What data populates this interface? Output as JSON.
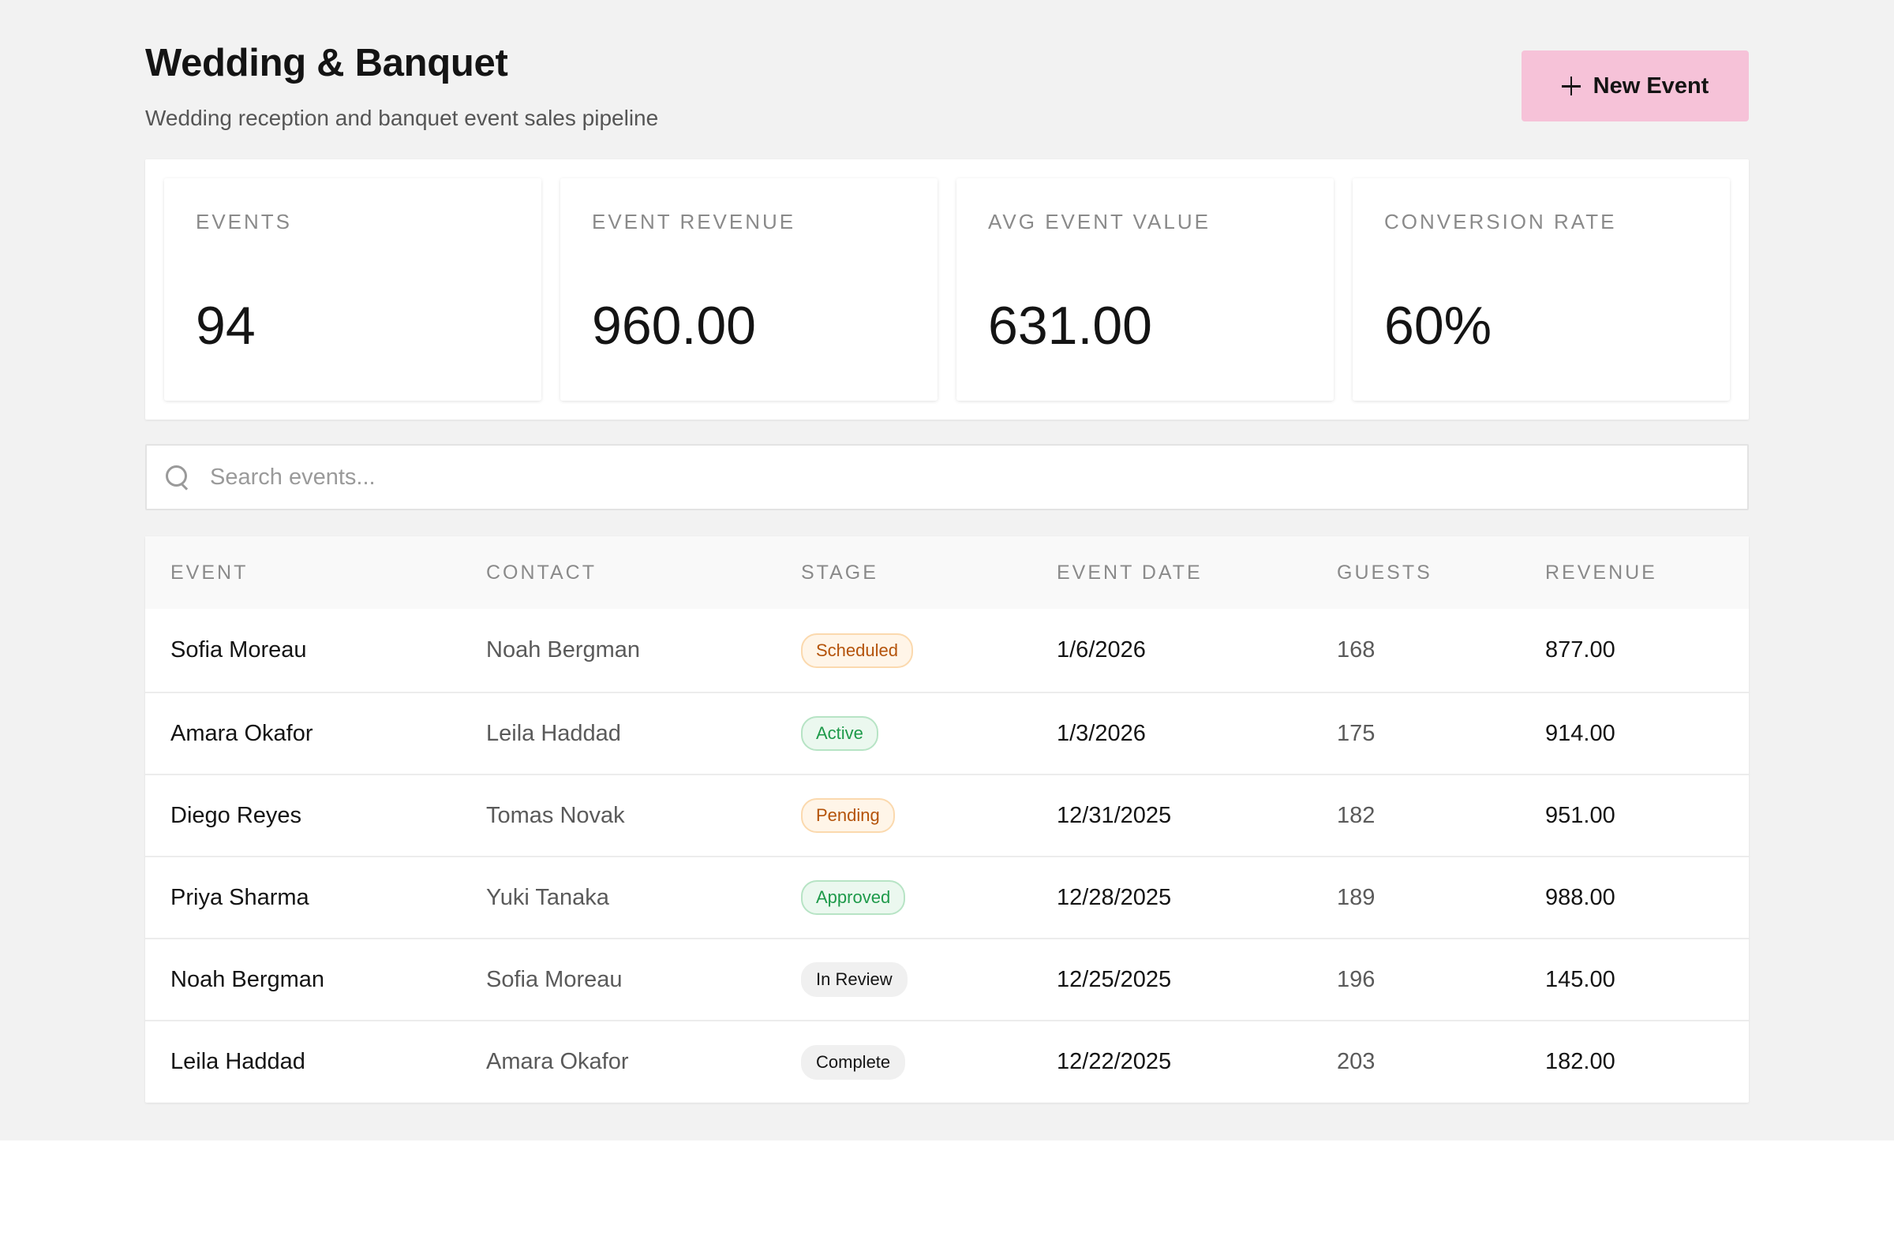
{
  "header": {
    "title": "Wedding & Banquet",
    "subtitle": "Wedding reception and banquet event sales pipeline",
    "new_event_label": "New Event"
  },
  "stats": [
    {
      "label": "EVENTS",
      "value": "94"
    },
    {
      "label": "EVENT REVENUE",
      "value": "960.00"
    },
    {
      "label": "AVG EVENT VALUE",
      "value": "631.00"
    },
    {
      "label": "CONVERSION RATE",
      "value": "60%"
    }
  ],
  "search": {
    "placeholder": "Search events..."
  },
  "table": {
    "columns": [
      "EVENT",
      "CONTACT",
      "STAGE",
      "EVENT DATE",
      "GUESTS",
      "REVENUE"
    ],
    "rows": [
      {
        "event": "Sofia Moreau",
        "contact": "Noah Bergman",
        "stage": "Scheduled",
        "date": "1/6/2026",
        "guests": "168",
        "revenue": "877.00"
      },
      {
        "event": "Amara Okafor",
        "contact": "Leila Haddad",
        "stage": "Active",
        "date": "1/3/2026",
        "guests": "175",
        "revenue": "914.00"
      },
      {
        "event": "Diego Reyes",
        "contact": "Tomas Novak",
        "stage": "Pending",
        "date": "12/31/2025",
        "guests": "182",
        "revenue": "951.00"
      },
      {
        "event": "Priya Sharma",
        "contact": "Yuki Tanaka",
        "stage": "Approved",
        "date": "12/28/2025",
        "guests": "189",
        "revenue": "988.00"
      },
      {
        "event": "Noah Bergman",
        "contact": "Sofia Moreau",
        "stage": "In Review",
        "date": "12/25/2025",
        "guests": "196",
        "revenue": "145.00"
      },
      {
        "event": "Leila Haddad",
        "contact": "Amara Okafor",
        "stage": "Complete",
        "date": "12/22/2025",
        "guests": "203",
        "revenue": "182.00"
      }
    ]
  },
  "colors": {
    "accent": "#f6c2d8",
    "background": "#f2f2f2",
    "stage_amber": "#b4530a",
    "stage_green": "#1e9a4a"
  },
  "icons": {
    "button": "plus-icon",
    "search": "search-icon"
  }
}
